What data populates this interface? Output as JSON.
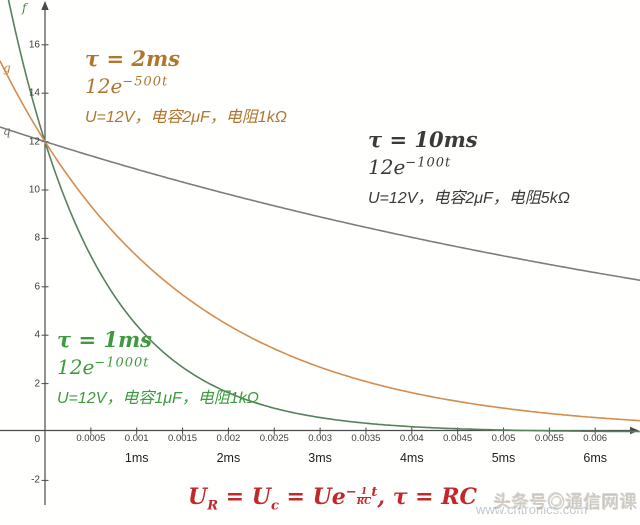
{
  "chart_data": {
    "type": "line",
    "title": "",
    "xlabel": "",
    "ylabel": "",
    "x_range": [
      -0.0005,
      0.0065
    ],
    "y_range": [
      -2.5,
      18
    ],
    "grid": false,
    "x_tick_labels": [
      "0.0005",
      "0.001",
      "0.0015",
      "0.002",
      "0.0025",
      "0.003",
      "0.0035",
      "0.004",
      "0.0045",
      "0.005",
      "0.0055",
      "0.006"
    ],
    "x_ms_labels": [
      "1ms",
      "2ms",
      "3ms",
      "4ms",
      "5ms",
      "6ms"
    ],
    "y_tick_labels": [
      "16",
      "14",
      "12",
      "10",
      "8",
      "6",
      "4",
      "2",
      "-2"
    ],
    "origin_label": "0",
    "series": [
      {
        "name": "f",
        "formula": "12e^(-1000t)",
        "U0": 12,
        "rate": 1000,
        "tau": "1ms",
        "color": "#57805c"
      },
      {
        "name": "g",
        "formula": "12e^(-500t)",
        "U0": 12,
        "rate": 500,
        "tau": "2ms",
        "color": "#d48c50"
      },
      {
        "name": "q",
        "formula": "12e^(-100t)",
        "U0": 12,
        "rate": 100,
        "tau": "10ms",
        "color": "#7d7d7d"
      }
    ]
  },
  "annotations": {
    "orange": {
      "tau": "τ = 2ms",
      "func_base": "12e",
      "func_exp": "−500t",
      "desc": "U=12V，电容2μF，电阻1kΩ"
    },
    "gray": {
      "tau": "τ = 10ms",
      "func_base": "12e",
      "func_exp": "−100t",
      "desc": "U=12V，电容2μF，电阻5kΩ"
    },
    "green": {
      "tau": "τ = 1ms",
      "func_base": "12e",
      "func_exp": "−1000t",
      "desc": "U=12V，电容1μF，电阻1kΩ"
    }
  },
  "formula": {
    "p1": "U",
    "p1sub": "R",
    "p2": " = U",
    "p2sub": "c",
    "p3": " = Ue",
    "exp_minus": "−",
    "frac_top": "1",
    "frac_bot": "RC",
    "exp_var": "t",
    "tail": ", τ = RC"
  },
  "watermarks": {
    "toutiao_prefix": "头条号",
    "toutiao_logo": "◎",
    "toutiao_name": "通信网课",
    "site": "www.cntronics.com"
  },
  "colors": {
    "green_text": "#3f9a3f",
    "orange_text": "#b0762f",
    "gray_text": "#3a3a3a",
    "red_formula": "#c2272b",
    "axis": "#4a4a4a"
  }
}
